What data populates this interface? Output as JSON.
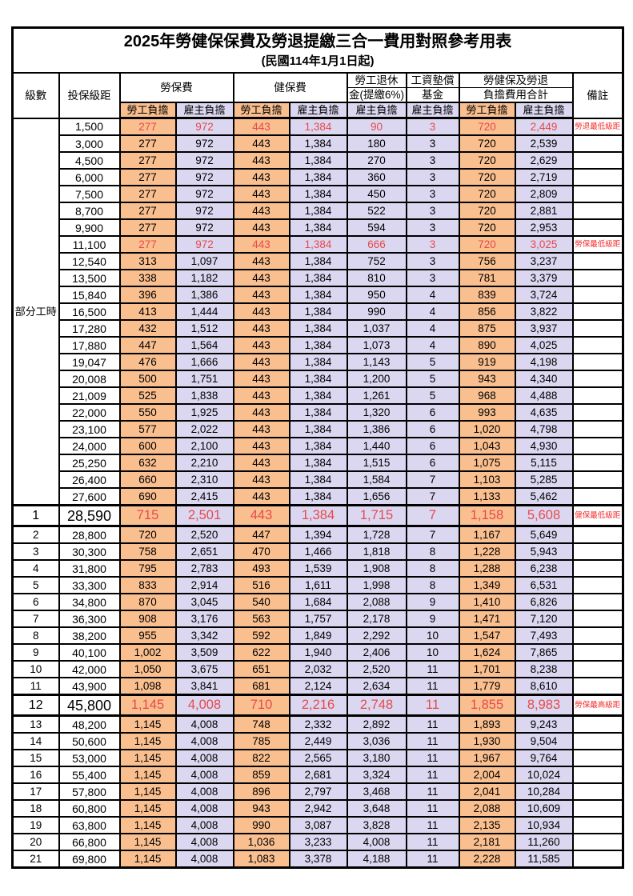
{
  "title": "2025年勞健保保費及勞退提繳三合一費用對照參考用表",
  "subtitle": "(民國114年1月1日起)",
  "header": {
    "level": "級數",
    "bracket": "投保級距",
    "labor_ins": "勞保費",
    "health_ins": "健保費",
    "pension_line1": "勞工退休",
    "pension_line2": "金(提繳6%)",
    "wage_fund_line1": "工資墊償",
    "wage_fund_line2": "基金",
    "total_line1": "勞健保及勞退",
    "total_line2": "負擔費用合計",
    "remark": "備註",
    "employee_burden": "勞工負擔",
    "employer_burden": "雇主負擔"
  },
  "part_time_label": "部分工時",
  "colors": {
    "employee_bg": "#FABF8F",
    "employer_bg": "#DBD7F0",
    "highlight_text": "#E8494B",
    "remark_text": "#F32B2B",
    "border": "#000000"
  },
  "rows": [
    {
      "level": null,
      "bracket": "1,500",
      "values": [
        "277",
        "972",
        "443",
        "1,384",
        "90",
        "3",
        "720",
        "2,449"
      ],
      "remark": "勞退最低級距",
      "red": true,
      "big": false
    },
    {
      "level": null,
      "bracket": "3,000",
      "values": [
        "277",
        "972",
        "443",
        "1,384",
        "180",
        "3",
        "720",
        "2,539"
      ],
      "remark": "",
      "red": false,
      "big": false
    },
    {
      "level": null,
      "bracket": "4,500",
      "values": [
        "277",
        "972",
        "443",
        "1,384",
        "270",
        "3",
        "720",
        "2,629"
      ],
      "remark": "",
      "red": false,
      "big": false
    },
    {
      "level": null,
      "bracket": "6,000",
      "values": [
        "277",
        "972",
        "443",
        "1,384",
        "360",
        "3",
        "720",
        "2,719"
      ],
      "remark": "",
      "red": false,
      "big": false
    },
    {
      "level": null,
      "bracket": "7,500",
      "values": [
        "277",
        "972",
        "443",
        "1,384",
        "450",
        "3",
        "720",
        "2,809"
      ],
      "remark": "",
      "red": false,
      "big": false
    },
    {
      "level": null,
      "bracket": "8,700",
      "values": [
        "277",
        "972",
        "443",
        "1,384",
        "522",
        "3",
        "720",
        "2,881"
      ],
      "remark": "",
      "red": false,
      "big": false
    },
    {
      "level": null,
      "bracket": "9,900",
      "values": [
        "277",
        "972",
        "443",
        "1,384",
        "594",
        "3",
        "720",
        "2,953"
      ],
      "remark": "",
      "red": false,
      "big": false
    },
    {
      "level": null,
      "bracket": "11,100",
      "values": [
        "277",
        "972",
        "443",
        "1,384",
        "666",
        "3",
        "720",
        "3,025"
      ],
      "remark": "勞保最低級距",
      "red": true,
      "big": false
    },
    {
      "level": null,
      "bracket": "12,540",
      "values": [
        "313",
        "1,097",
        "443",
        "1,384",
        "752",
        "3",
        "756",
        "3,237"
      ],
      "remark": "",
      "red": false,
      "big": false
    },
    {
      "level": null,
      "bracket": "13,500",
      "values": [
        "338",
        "1,182",
        "443",
        "1,384",
        "810",
        "3",
        "781",
        "3,379"
      ],
      "remark": "",
      "red": false,
      "big": false
    },
    {
      "level": null,
      "bracket": "15,840",
      "values": [
        "396",
        "1,386",
        "443",
        "1,384",
        "950",
        "4",
        "839",
        "3,724"
      ],
      "remark": "",
      "red": false,
      "big": false
    },
    {
      "level": null,
      "bracket": "16,500",
      "values": [
        "413",
        "1,444",
        "443",
        "1,384",
        "990",
        "4",
        "856",
        "3,822"
      ],
      "remark": "",
      "red": false,
      "big": false
    },
    {
      "level": null,
      "bracket": "17,280",
      "values": [
        "432",
        "1,512",
        "443",
        "1,384",
        "1,037",
        "4",
        "875",
        "3,937"
      ],
      "remark": "",
      "red": false,
      "big": false
    },
    {
      "level": null,
      "bracket": "17,880",
      "values": [
        "447",
        "1,564",
        "443",
        "1,384",
        "1,073",
        "4",
        "890",
        "4,025"
      ],
      "remark": "",
      "red": false,
      "big": false
    },
    {
      "level": null,
      "bracket": "19,047",
      "values": [
        "476",
        "1,666",
        "443",
        "1,384",
        "1,143",
        "5",
        "919",
        "4,198"
      ],
      "remark": "",
      "red": false,
      "big": false
    },
    {
      "level": null,
      "bracket": "20,008",
      "values": [
        "500",
        "1,751",
        "443",
        "1,384",
        "1,200",
        "5",
        "943",
        "4,340"
      ],
      "remark": "",
      "red": false,
      "big": false
    },
    {
      "level": null,
      "bracket": "21,009",
      "values": [
        "525",
        "1,838",
        "443",
        "1,384",
        "1,261",
        "5",
        "968",
        "4,488"
      ],
      "remark": "",
      "red": false,
      "big": false
    },
    {
      "level": null,
      "bracket": "22,000",
      "values": [
        "550",
        "1,925",
        "443",
        "1,384",
        "1,320",
        "6",
        "993",
        "4,635"
      ],
      "remark": "",
      "red": false,
      "big": false
    },
    {
      "level": null,
      "bracket": "23,100",
      "values": [
        "577",
        "2,022",
        "443",
        "1,384",
        "1,386",
        "6",
        "1,020",
        "4,798"
      ],
      "remark": "",
      "red": false,
      "big": false
    },
    {
      "level": null,
      "bracket": "24,000",
      "values": [
        "600",
        "2,100",
        "443",
        "1,384",
        "1,440",
        "6",
        "1,043",
        "4,930"
      ],
      "remark": "",
      "red": false,
      "big": false
    },
    {
      "level": null,
      "bracket": "25,250",
      "values": [
        "632",
        "2,210",
        "443",
        "1,384",
        "1,515",
        "6",
        "1,075",
        "5,115"
      ],
      "remark": "",
      "red": false,
      "big": false
    },
    {
      "level": null,
      "bracket": "26,400",
      "values": [
        "660",
        "2,310",
        "443",
        "1,384",
        "1,584",
        "7",
        "1,103",
        "5,285"
      ],
      "remark": "",
      "red": false,
      "big": false
    },
    {
      "level": null,
      "bracket": "27,600",
      "values": [
        "690",
        "2,415",
        "443",
        "1,384",
        "1,656",
        "7",
        "1,133",
        "5,462"
      ],
      "remark": "",
      "red": false,
      "big": false
    },
    {
      "level": "1",
      "bracket": "28,590",
      "values": [
        "715",
        "2,501",
        "443",
        "1,384",
        "1,715",
        "7",
        "1,158",
        "5,608"
      ],
      "remark": "健保最低級距",
      "red": true,
      "big": true
    },
    {
      "level": "2",
      "bracket": "28,800",
      "values": [
        "720",
        "2,520",
        "447",
        "1,394",
        "1,728",
        "7",
        "1,167",
        "5,649"
      ],
      "remark": "",
      "red": false,
      "big": false
    },
    {
      "level": "3",
      "bracket": "30,300",
      "values": [
        "758",
        "2,651",
        "470",
        "1,466",
        "1,818",
        "8",
        "1,228",
        "5,943"
      ],
      "remark": "",
      "red": false,
      "big": false
    },
    {
      "level": "4",
      "bracket": "31,800",
      "values": [
        "795",
        "2,783",
        "493",
        "1,539",
        "1,908",
        "8",
        "1,288",
        "6,238"
      ],
      "remark": "",
      "red": false,
      "big": false
    },
    {
      "level": "5",
      "bracket": "33,300",
      "values": [
        "833",
        "2,914",
        "516",
        "1,611",
        "1,998",
        "8",
        "1,349",
        "6,531"
      ],
      "remark": "",
      "red": false,
      "big": false
    },
    {
      "level": "6",
      "bracket": "34,800",
      "values": [
        "870",
        "3,045",
        "540",
        "1,684",
        "2,088",
        "9",
        "1,410",
        "6,826"
      ],
      "remark": "",
      "red": false,
      "big": false
    },
    {
      "level": "7",
      "bracket": "36,300",
      "values": [
        "908",
        "3,176",
        "563",
        "1,757",
        "2,178",
        "9",
        "1,471",
        "7,120"
      ],
      "remark": "",
      "red": false,
      "big": false
    },
    {
      "level": "8",
      "bracket": "38,200",
      "values": [
        "955",
        "3,342",
        "592",
        "1,849",
        "2,292",
        "10",
        "1,547",
        "7,493"
      ],
      "remark": "",
      "red": false,
      "big": false
    },
    {
      "level": "9",
      "bracket": "40,100",
      "values": [
        "1,002",
        "3,509",
        "622",
        "1,940",
        "2,406",
        "10",
        "1,624",
        "7,865"
      ],
      "remark": "",
      "red": false,
      "big": false
    },
    {
      "level": "10",
      "bracket": "42,000",
      "values": [
        "1,050",
        "3,675",
        "651",
        "2,032",
        "2,520",
        "11",
        "1,701",
        "8,238"
      ],
      "remark": "",
      "red": false,
      "big": false
    },
    {
      "level": "11",
      "bracket": "43,900",
      "values": [
        "1,098",
        "3,841",
        "681",
        "2,124",
        "2,634",
        "11",
        "1,779",
        "8,610"
      ],
      "remark": "",
      "red": false,
      "big": false
    },
    {
      "level": "12",
      "bracket": "45,800",
      "values": [
        "1,145",
        "4,008",
        "710",
        "2,216",
        "2,748",
        "11",
        "1,855",
        "8,983"
      ],
      "remark": "勞保最高級距",
      "red": true,
      "big": true
    },
    {
      "level": "13",
      "bracket": "48,200",
      "values": [
        "1,145",
        "4,008",
        "748",
        "2,332",
        "2,892",
        "11",
        "1,893",
        "9,243"
      ],
      "remark": "",
      "red": false,
      "big": false
    },
    {
      "level": "14",
      "bracket": "50,600",
      "values": [
        "1,145",
        "4,008",
        "785",
        "2,449",
        "3,036",
        "11",
        "1,930",
        "9,504"
      ],
      "remark": "",
      "red": false,
      "big": false
    },
    {
      "level": "15",
      "bracket": "53,000",
      "values": [
        "1,145",
        "4,008",
        "822",
        "2,565",
        "3,180",
        "11",
        "1,967",
        "9,764"
      ],
      "remark": "",
      "red": false,
      "big": false
    },
    {
      "level": "16",
      "bracket": "55,400",
      "values": [
        "1,145",
        "4,008",
        "859",
        "2,681",
        "3,324",
        "11",
        "2,004",
        "10,024"
      ],
      "remark": "",
      "red": false,
      "big": false
    },
    {
      "level": "17",
      "bracket": "57,800",
      "values": [
        "1,145",
        "4,008",
        "896",
        "2,797",
        "3,468",
        "11",
        "2,041",
        "10,284"
      ],
      "remark": "",
      "red": false,
      "big": false
    },
    {
      "level": "18",
      "bracket": "60,800",
      "values": [
        "1,145",
        "4,008",
        "943",
        "2,942",
        "3,648",
        "11",
        "2,088",
        "10,609"
      ],
      "remark": "",
      "red": false,
      "big": false
    },
    {
      "level": "19",
      "bracket": "63,800",
      "values": [
        "1,145",
        "4,008",
        "990",
        "3,087",
        "3,828",
        "11",
        "2,135",
        "10,934"
      ],
      "remark": "",
      "red": false,
      "big": false
    },
    {
      "level": "20",
      "bracket": "66,800",
      "values": [
        "1,145",
        "4,008",
        "1,036",
        "3,233",
        "4,008",
        "11",
        "2,181",
        "11,260"
      ],
      "remark": "",
      "red": false,
      "big": false
    },
    {
      "level": "21",
      "bracket": "69,800",
      "values": [
        "1,145",
        "4,008",
        "1,083",
        "3,378",
        "4,188",
        "11",
        "2,228",
        "11,585"
      ],
      "remark": "",
      "red": false,
      "big": false
    }
  ]
}
